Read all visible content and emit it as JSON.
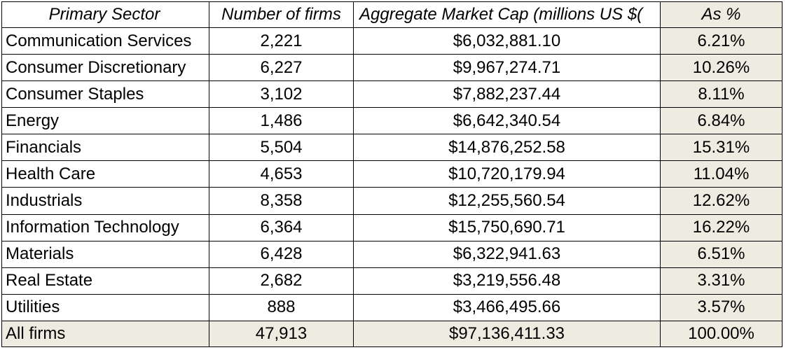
{
  "headers": {
    "sector": "Primary Sector",
    "firms": "Number of firms",
    "mcap": "Aggregate Market Cap (millions US $(",
    "pct": "As %"
  },
  "rows": [
    {
      "sector": "Communication Services",
      "firms": "2,221",
      "mcap": "$6,032,881.10",
      "pct": "6.21%"
    },
    {
      "sector": "Consumer Discretionary",
      "firms": "6,227",
      "mcap": "$9,967,274.71",
      "pct": "10.26%"
    },
    {
      "sector": "Consumer Staples",
      "firms": "3,102",
      "mcap": "$7,882,237.44",
      "pct": "8.11%"
    },
    {
      "sector": "Energy",
      "firms": "1,486",
      "mcap": "$6,642,340.54",
      "pct": "6.84%"
    },
    {
      "sector": "Financials",
      "firms": "5,504",
      "mcap": "$14,876,252.58",
      "pct": "15.31%"
    },
    {
      "sector": "Health Care",
      "firms": "4,653",
      "mcap": "$10,720,179.94",
      "pct": "11.04%"
    },
    {
      "sector": "Industrials",
      "firms": "8,358",
      "mcap": "$12,255,560.54",
      "pct": "12.62%"
    },
    {
      "sector": "Information Technology",
      "firms": "6,364",
      "mcap": "$15,750,690.71",
      "pct": "16.22%"
    },
    {
      "sector": "Materials",
      "firms": "6,428",
      "mcap": "$6,322,941.63",
      "pct": "6.51%"
    },
    {
      "sector": "Real Estate",
      "firms": "2,682",
      "mcap": "$3,219,556.48",
      "pct": "3.31%"
    },
    {
      "sector": "Utilities",
      "firms": "888",
      "mcap": "$3,466,495.66",
      "pct": "3.57%"
    }
  ],
  "total": {
    "sector": "All firms",
    "firms": "47,913",
    "mcap": "$97,136,411.33",
    "pct": "100.00%"
  },
  "colors": {
    "shade": "#eeece1",
    "border": "#000000"
  }
}
